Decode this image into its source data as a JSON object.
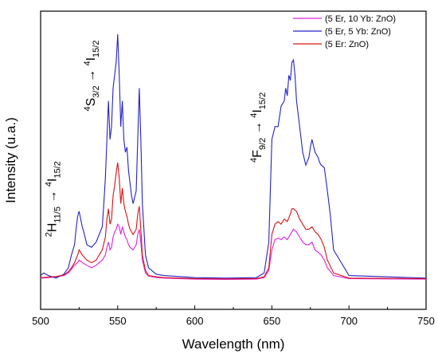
{
  "chart_data": {
    "type": "line",
    "title": "",
    "xlabel": "Wavelength (nm)",
    "ylabel": "Intensity (u.a.)",
    "xlim": [
      500,
      750
    ],
    "ylim": [
      0,
      1
    ],
    "xticks": [
      500,
      550,
      600,
      650,
      700,
      750
    ],
    "xtick_labels": [
      "500",
      "550",
      "600",
      "650",
      "700",
      "750"
    ],
    "grid": false,
    "legend_position": "top-right",
    "annotations": [
      {
        "name": "annotation-2h",
        "base": "2H",
        "sub1": "11/5",
        "arrow": " → ",
        "sup": "4",
        "base2": "I",
        "sub2": "15/2",
        "x": 510,
        "y": 0.17
      },
      {
        "name": "annotation-4s",
        "sup0": "4",
        "base": "S",
        "sub1": "3/2",
        "arrow": " → ",
        "sup": "4",
        "base2": "I",
        "sub2": "15/2",
        "x": 535,
        "y": 0.66
      },
      {
        "name": "annotation-4f",
        "sup0": "4",
        "base": "F",
        "sub1": "9/2",
        "arrow": " → ",
        "sup": "4",
        "base2": "I",
        "sub2": "15/2",
        "x": 643,
        "y": 0.46
      }
    ],
    "series": [
      {
        "name": "(5 Er, 10 Yb: ZnO)",
        "color": "#e020e0",
        "x": [
          500,
          505,
          510,
          515,
          518,
          520,
          522,
          524,
          525,
          527,
          530,
          533,
          536,
          538,
          540,
          542,
          543,
          544,
          545,
          546,
          547,
          548,
          549,
          550,
          551,
          552,
          553,
          554,
          555,
          556,
          557,
          558,
          560,
          562,
          563,
          564,
          565,
          566,
          568,
          570,
          575,
          580,
          600,
          620,
          640,
          645,
          648,
          650,
          652,
          654,
          656,
          658,
          660,
          662,
          663,
          664,
          666,
          668,
          670,
          672,
          674,
          676,
          678,
          680,
          682,
          684,
          686,
          690,
          700,
          750
        ],
        "values": [
          0.01,
          0.012,
          0.015,
          0.02,
          0.03,
          0.045,
          0.06,
          0.07,
          0.08,
          0.07,
          0.06,
          0.05,
          0.06,
          0.07,
          0.08,
          0.1,
          0.13,
          0.15,
          0.12,
          0.13,
          0.17,
          0.19,
          0.2,
          0.22,
          0.21,
          0.18,
          0.21,
          0.19,
          0.17,
          0.16,
          0.14,
          0.13,
          0.12,
          0.14,
          0.18,
          0.2,
          0.15,
          0.08,
          0.03,
          0.018,
          0.012,
          0.01,
          0.006,
          0.005,
          0.006,
          0.012,
          0.04,
          0.12,
          0.16,
          0.165,
          0.16,
          0.17,
          0.16,
          0.18,
          0.19,
          0.2,
          0.19,
          0.17,
          0.15,
          0.14,
          0.14,
          0.15,
          0.12,
          0.11,
          0.1,
          0.08,
          0.05,
          0.02,
          0.008,
          0.006
        ]
      },
      {
        "name": "(5 Er, 5 Yb: ZnO)",
        "color": "#2222cc",
        "x": [
          500,
          502,
          505,
          510,
          515,
          518,
          520,
          522,
          523,
          524,
          525,
          526,
          527,
          528,
          530,
          533,
          536,
          538,
          540,
          541,
          542,
          543,
          544,
          545,
          546,
          547,
          548,
          549,
          550,
          551,
          552,
          553,
          554,
          555,
          556,
          557,
          558,
          559,
          560,
          562,
          563,
          564,
          565,
          566,
          568,
          570,
          575,
          580,
          600,
          620,
          640,
          645,
          648,
          650,
          652,
          654,
          656,
          658,
          659,
          660,
          661,
          662,
          663,
          664,
          665,
          666,
          668,
          670,
          672,
          674,
          675,
          676,
          678,
          680,
          681,
          682,
          684,
          686,
          688,
          690,
          700,
          750
        ],
        "values": [
          0.02,
          0.03,
          0.02,
          0.01,
          0.025,
          0.05,
          0.1,
          0.14,
          0.2,
          0.25,
          0.27,
          0.24,
          0.21,
          0.19,
          0.14,
          0.13,
          0.15,
          0.18,
          0.21,
          0.3,
          0.4,
          0.55,
          0.7,
          0.55,
          0.6,
          0.75,
          0.8,
          0.85,
          0.96,
          0.8,
          0.6,
          0.7,
          0.55,
          0.5,
          0.52,
          0.43,
          0.38,
          0.33,
          0.3,
          0.35,
          0.55,
          0.75,
          0.55,
          0.3,
          0.1,
          0.05,
          0.025,
          0.02,
          0.012,
          0.01,
          0.012,
          0.03,
          0.15,
          0.55,
          0.6,
          0.6,
          0.68,
          0.7,
          0.75,
          0.72,
          0.8,
          0.78,
          0.85,
          0.86,
          0.8,
          0.7,
          0.6,
          0.5,
          0.45,
          0.48,
          0.52,
          0.55,
          0.5,
          0.48,
          0.46,
          0.45,
          0.44,
          0.35,
          0.25,
          0.12,
          0.02,
          0.01
        ]
      },
      {
        "name": "(5 Er: ZnO)",
        "color": "#dd1111",
        "x": [
          500,
          505,
          510,
          515,
          518,
          520,
          522,
          524,
          525,
          527,
          530,
          533,
          536,
          538,
          540,
          542,
          543,
          544,
          545,
          546,
          547,
          548,
          549,
          550,
          551,
          552,
          553,
          554,
          555,
          556,
          557,
          558,
          560,
          562,
          563,
          564,
          565,
          566,
          568,
          570,
          575,
          580,
          600,
          620,
          640,
          645,
          648,
          650,
          652,
          654,
          656,
          658,
          660,
          662,
          663,
          664,
          666,
          668,
          670,
          672,
          674,
          676,
          678,
          680,
          682,
          684,
          686,
          690,
          700,
          750
        ],
        "values": [
          0.012,
          0.014,
          0.016,
          0.022,
          0.035,
          0.05,
          0.07,
          0.1,
          0.12,
          0.1,
          0.08,
          0.07,
          0.08,
          0.1,
          0.12,
          0.17,
          0.24,
          0.28,
          0.22,
          0.24,
          0.33,
          0.37,
          0.42,
          0.46,
          0.4,
          0.3,
          0.36,
          0.3,
          0.27,
          0.25,
          0.22,
          0.2,
          0.18,
          0.2,
          0.26,
          0.29,
          0.2,
          0.1,
          0.04,
          0.02,
          0.015,
          0.012,
          0.008,
          0.007,
          0.008,
          0.015,
          0.05,
          0.18,
          0.22,
          0.23,
          0.22,
          0.24,
          0.23,
          0.26,
          0.28,
          0.28,
          0.27,
          0.24,
          0.22,
          0.2,
          0.2,
          0.21,
          0.19,
          0.18,
          0.16,
          0.13,
          0.08,
          0.03,
          0.01,
          0.008
        ]
      }
    ]
  }
}
